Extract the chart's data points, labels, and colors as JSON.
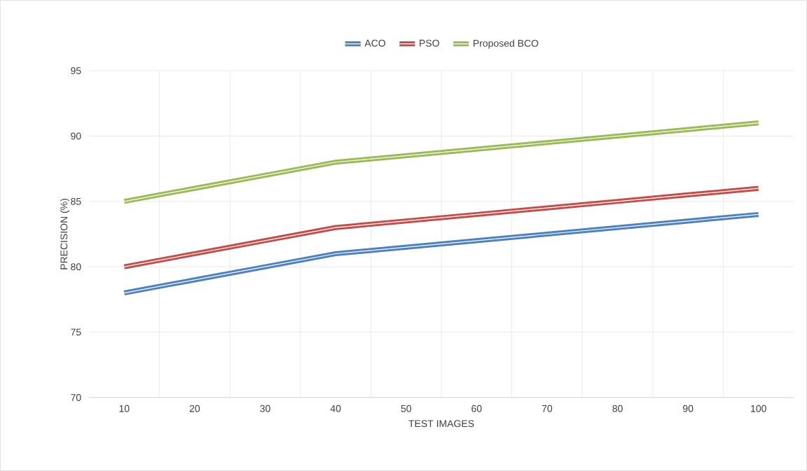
{
  "chart_data": {
    "type": "line",
    "xlabel": "TEST IMAGES",
    "ylabel": "PRECISION (%)",
    "categories": [
      "10",
      "20",
      "30",
      "40",
      "50",
      "60",
      "70",
      "80",
      "90",
      "100"
    ],
    "series": [
      {
        "name": "ACO",
        "color": "#4f81bd",
        "values": [
          78,
          79,
          80,
          81,
          81.5,
          82,
          82.5,
          83,
          83.5,
          84
        ]
      },
      {
        "name": "PSO",
        "color": "#c0504d",
        "values": [
          80,
          81,
          82,
          83,
          83.5,
          84,
          84.5,
          85,
          85.5,
          86
        ]
      },
      {
        "name": "Proposed BCO",
        "color": "#9bbb59",
        "values": [
          85,
          86,
          87,
          88,
          88.5,
          89,
          89.5,
          90,
          90.5,
          91
        ]
      }
    ],
    "ylim": [
      70,
      95
    ],
    "yticks": [
      70,
      75,
      80,
      85,
      90,
      95
    ],
    "grid": true,
    "legend": "top",
    "marker": "none",
    "line_style": "solid"
  }
}
